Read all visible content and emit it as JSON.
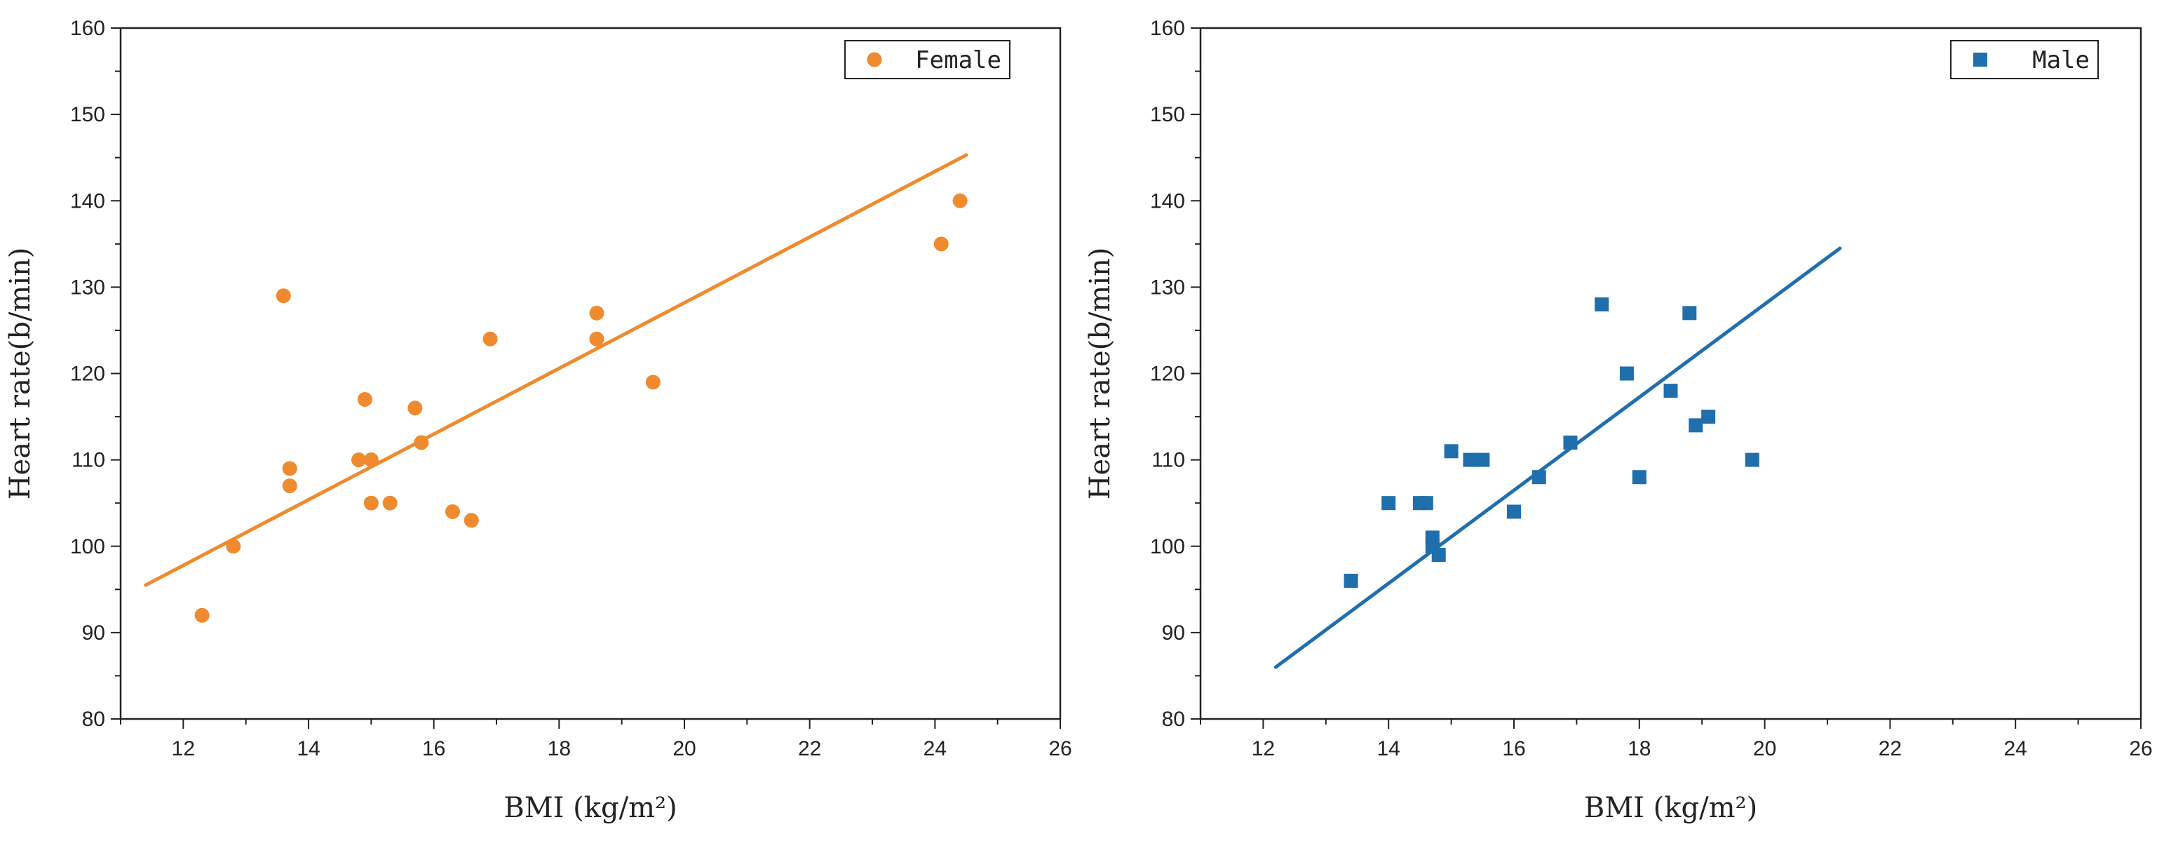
{
  "chart_data": [
    {
      "type": "scatter",
      "id": "female",
      "xlabel": "BMI  (kg/m²)",
      "ylabel": "Heart rate(b/min)",
      "xlim": [
        11,
        26
      ],
      "ylim": [
        80,
        160
      ],
      "xticks": [
        12,
        14,
        16,
        18,
        20,
        22,
        24,
        26
      ],
      "yticks": [
        80,
        90,
        100,
        110,
        120,
        130,
        140,
        150,
        160
      ],
      "legend": {
        "label": "Female",
        "position": "top-right"
      },
      "color": "#ef8a2e",
      "marker": "circle",
      "points": [
        [
          12.3,
          92
        ],
        [
          12.8,
          100
        ],
        [
          13.6,
          129
        ],
        [
          13.7,
          109
        ],
        [
          13.7,
          107
        ],
        [
          14.8,
          110
        ],
        [
          14.9,
          117
        ],
        [
          15.0,
          110
        ],
        [
          15.0,
          105
        ],
        [
          15.3,
          105
        ],
        [
          15.7,
          116
        ],
        [
          15.8,
          112
        ],
        [
          16.3,
          104
        ],
        [
          16.6,
          103
        ],
        [
          16.9,
          124
        ],
        [
          18.6,
          127
        ],
        [
          18.6,
          124
        ],
        [
          19.5,
          119
        ],
        [
          24.1,
          135
        ],
        [
          24.4,
          140
        ]
      ],
      "fit_line": {
        "x": [
          11.4,
          24.5
        ],
        "y": [
          95.5,
          145.3
        ]
      }
    },
    {
      "type": "scatter",
      "id": "male",
      "xlabel": "BMI  (kg/m²)",
      "ylabel": "Heart rate(b/min)",
      "xlim": [
        11,
        26
      ],
      "ylim": [
        80,
        160
      ],
      "xticks": [
        12,
        14,
        16,
        18,
        20,
        22,
        24,
        26
      ],
      "yticks": [
        80,
        90,
        100,
        110,
        120,
        130,
        140,
        150,
        160
      ],
      "legend": {
        "label": "Male",
        "position": "top-right"
      },
      "color": "#1f6fad",
      "marker": "square",
      "points": [
        [
          13.4,
          96
        ],
        [
          14.0,
          105
        ],
        [
          14.5,
          105
        ],
        [
          14.6,
          105
        ],
        [
          14.7,
          101
        ],
        [
          14.7,
          100
        ],
        [
          14.8,
          99
        ],
        [
          15.0,
          111
        ],
        [
          15.3,
          110
        ],
        [
          15.5,
          110
        ],
        [
          16.0,
          104
        ],
        [
          16.4,
          108
        ],
        [
          16.9,
          112
        ],
        [
          17.4,
          128
        ],
        [
          17.8,
          120
        ],
        [
          18.0,
          108
        ],
        [
          18.5,
          118
        ],
        [
          18.8,
          127
        ],
        [
          18.9,
          114
        ],
        [
          19.1,
          115
        ],
        [
          19.8,
          110
        ]
      ],
      "fit_line": {
        "x": [
          12.2,
          21.2
        ],
        "y": [
          86,
          134.5
        ]
      }
    }
  ]
}
